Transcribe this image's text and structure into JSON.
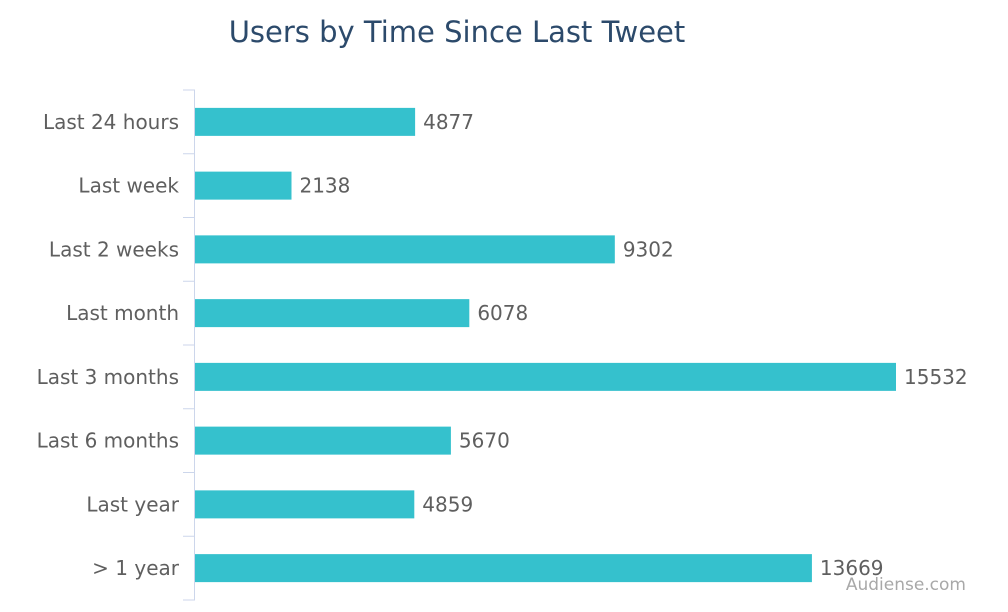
{
  "chart_data": {
    "type": "bar",
    "orientation": "horizontal",
    "title": "Users by Time Since Last Tweet",
    "categories": [
      "Last 24 hours",
      "Last week",
      "Last 2 weeks",
      "Last month",
      "Last 3 months",
      "Last 6 months",
      "Last year",
      "> 1 year"
    ],
    "values": [
      4877,
      2138,
      9302,
      6078,
      15532,
      5670,
      4859,
      13669
    ],
    "xlabel": "",
    "ylabel": "",
    "xlim": [
      0,
      15532
    ],
    "grid": false,
    "legend": "none",
    "data_labels": true
  },
  "colors": {
    "bar": "#35c1cd",
    "axis": "#ccd6eb",
    "title": "#2c4a6b",
    "text": "#5f5f5f",
    "credit": "#a8a8a8"
  },
  "credit": "Audiense.com"
}
